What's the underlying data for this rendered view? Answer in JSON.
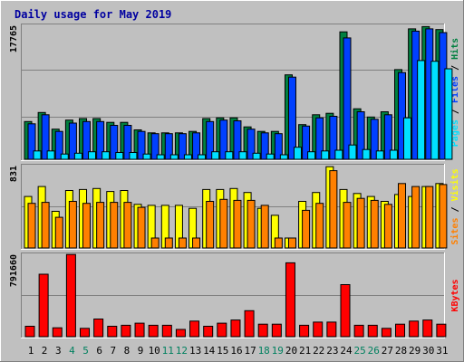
{
  "chart_data": {
    "type": "bar",
    "title": "Daily usage for May 2019",
    "categories": [
      "1",
      "2",
      "3",
      "4",
      "5",
      "6",
      "7",
      "8",
      "9",
      "10",
      "11",
      "12",
      "13",
      "14",
      "15",
      "16",
      "17",
      "18",
      "19",
      "20",
      "21",
      "22",
      "23",
      "24",
      "25",
      "26",
      "27",
      "28",
      "29",
      "30",
      "31"
    ],
    "weekend_days": [
      "4",
      "5",
      "11",
      "12",
      "18",
      "19",
      "25",
      "26"
    ],
    "panels": [
      {
        "id": "hits-panel",
        "y_max_label": "17765",
        "ymax": 17765,
        "axis_legend": [
          {
            "text": "Pages",
            "color": "#00e0ff"
          },
          {
            "text": " / ",
            "color": "#000000"
          },
          {
            "text": "Files",
            "color": "#0040ff"
          },
          {
            "text": " / ",
            "color": "#000000"
          },
          {
            "text": "Hits",
            "color": "#008040"
          }
        ],
        "series": [
          {
            "name": "Hits",
            "color": "#008040",
            "values": [
              5000,
              6200,
              4000,
              5200,
              5400,
              5400,
              4900,
              4900,
              3900,
              3500,
              3500,
              3500,
              3700,
              5400,
              5500,
              5500,
              4300,
              3700,
              3700,
              11200,
              4600,
              5900,
              6100,
              16900,
              6700,
              5600,
              6300,
              11900,
              17300,
              17600,
              17200
            ]
          },
          {
            "name": "Files",
            "color": "#0040ff",
            "values": [
              4700,
              5900,
              3700,
              4800,
              5000,
              5000,
              4500,
              4500,
              3700,
              3400,
              3400,
              3400,
              3500,
              5000,
              5200,
              5100,
              4000,
              3500,
              3400,
              10900,
              4400,
              5500,
              5700,
              16100,
              6300,
              5300,
              5900,
              11500,
              17000,
              17300,
              16800
            ]
          },
          {
            "name": "Pages",
            "color": "#00e0ff",
            "values": [
              1100,
              1100,
              700,
              800,
              1000,
              1000,
              900,
              900,
              700,
              600,
              600,
              600,
              600,
              1000,
              1000,
              1000,
              800,
              700,
              600,
              1600,
              1000,
              1100,
              1200,
              1900,
              1300,
              1100,
              1200,
              5500,
              13100,
              13000,
              12000
            ]
          }
        ]
      },
      {
        "id": "visits-panel",
        "y_max_label": "831",
        "ymax": 831,
        "axis_legend": [
          {
            "text": "Sites",
            "color": "#ff8000"
          },
          {
            "text": " / ",
            "color": "#000000"
          },
          {
            "text": "Visits",
            "color": "#ffff00"
          }
        ],
        "series": [
          {
            "name": "Visits",
            "color": "#ffff00",
            "values": [
              520,
              620,
              370,
              580,
              590,
              600,
              570,
              580,
              440,
              430,
              430,
              430,
              400,
              590,
              590,
              600,
              560,
              400,
              330,
              100,
              470,
              560,
              820,
              590,
              550,
              520,
              470,
              540,
              520,
              620,
              650
            ]
          },
          {
            "name": "Sites",
            "color": "#ff8000",
            "values": [
              450,
              460,
              310,
              470,
              450,
              460,
              460,
              460,
              410,
              100,
              100,
              100,
              100,
              470,
              490,
              480,
              480,
              430,
              100,
              100,
              380,
              450,
              780,
              460,
              500,
              480,
              440,
              650,
              620,
              620,
              640
            ]
          }
        ]
      },
      {
        "id": "kbytes-panel",
        "y_max_label": "791660",
        "ymax": 791660,
        "axis_legend": [
          {
            "text": "KBytes",
            "color": "#ff0000"
          }
        ],
        "series": [
          {
            "name": "KBytes",
            "color": "#ff0000",
            "values": [
              100000,
              600000,
              85000,
              790000,
              80000,
              170000,
              100000,
              110000,
              130000,
              110000,
              110000,
              70000,
              150000,
              100000,
              130000,
              160000,
              250000,
              120000,
              120000,
              710000,
              110000,
              140000,
              140000,
              500000,
              110000,
              110000,
              80000,
              120000,
              150000,
              160000,
              120000
            ]
          }
        ]
      }
    ]
  }
}
